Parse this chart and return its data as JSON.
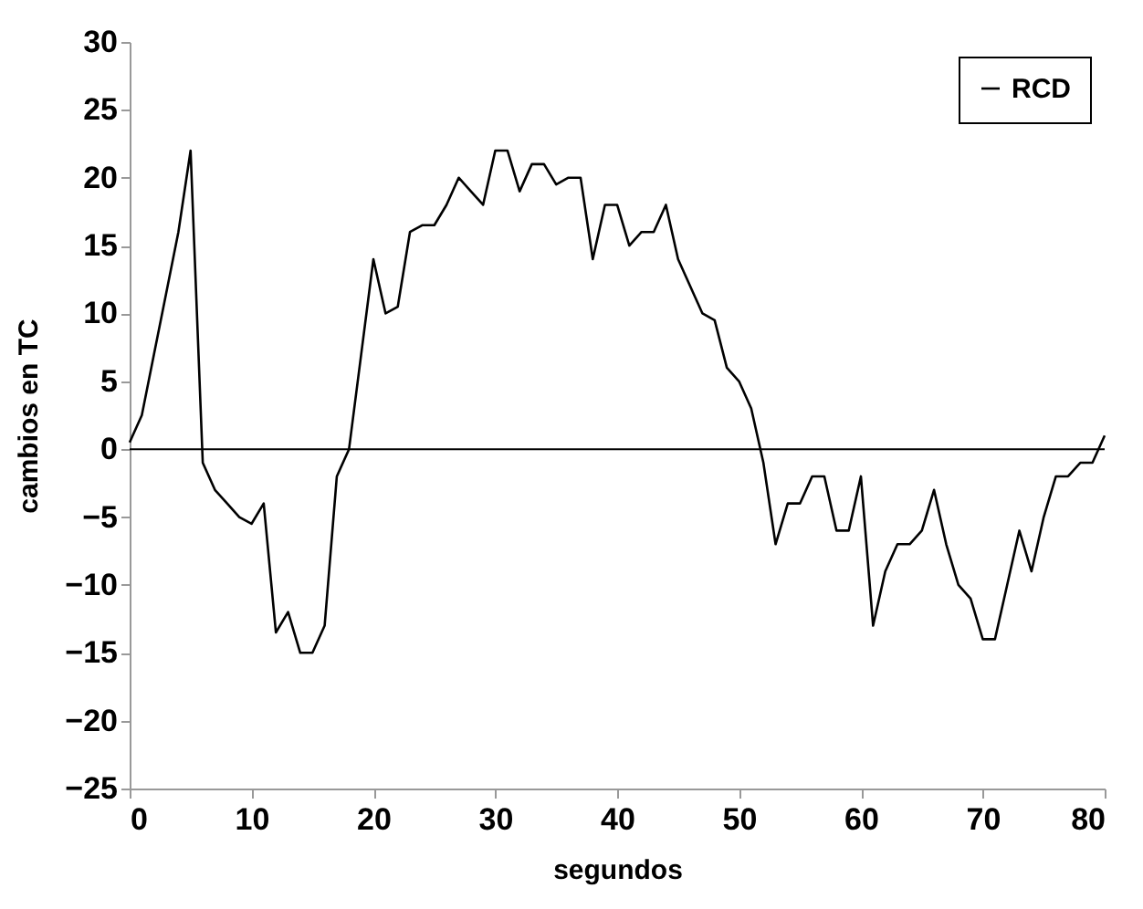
{
  "chart_data": {
    "type": "line",
    "xlabel": "segundos",
    "ylabel": "cambios en TC",
    "x": [
      0,
      1,
      2,
      3,
      4,
      5,
      6,
      7,
      8,
      9,
      10,
      11,
      12,
      13,
      14,
      15,
      16,
      17,
      18,
      19,
      20,
      21,
      22,
      23,
      24,
      25,
      26,
      27,
      28,
      29,
      30,
      31,
      32,
      33,
      34,
      35,
      36,
      37,
      38,
      39,
      40,
      41,
      42,
      43,
      44,
      45,
      46,
      47,
      48,
      49,
      50,
      51,
      52,
      53,
      54,
      55,
      56,
      57,
      58,
      59,
      60,
      61,
      62,
      63,
      64,
      65,
      66,
      67,
      68,
      69,
      70,
      71,
      72,
      73,
      74,
      75,
      76,
      77,
      78,
      79,
      80
    ],
    "series": [
      {
        "name": "RCD",
        "color": "#000000",
        "values": [
          0.5,
          2.5,
          7,
          11.5,
          16,
          22,
          -1,
          -3,
          -4,
          -5,
          -5.5,
          -4,
          -13.5,
          -12,
          -15,
          -15,
          -13,
          -2,
          0,
          7,
          14,
          10,
          10.5,
          16,
          16.5,
          16.5,
          18,
          20,
          19,
          18,
          22,
          22,
          19,
          21,
          21,
          19.5,
          20,
          20,
          14,
          18,
          18,
          15,
          16,
          16,
          18,
          14,
          12,
          10,
          9.5,
          6,
          5,
          3,
          -1,
          -7,
          -4,
          -4,
          -2,
          -2,
          -6,
          -6,
          -2,
          -13,
          -9,
          -7,
          -7,
          -6,
          -3,
          -7,
          -10,
          -11,
          -14,
          -14,
          -10,
          -6,
          -9,
          -5,
          -2,
          -2,
          -1,
          -1,
          1
        ]
      }
    ],
    "xlim": [
      0,
      80
    ],
    "xticks": [
      0,
      10,
      20,
      30,
      40,
      50,
      60,
      70,
      80
    ],
    "ylim": [
      -25,
      30
    ],
    "yticks": [
      -25,
      -20,
      -15,
      -10,
      -5,
      0,
      5,
      10,
      15,
      20,
      25,
      30
    ],
    "ref_lines": [
      {
        "axis": "y",
        "value": 0,
        "color": "#000000"
      }
    ],
    "legend": "top right",
    "grid": false,
    "marker": "none",
    "line_style": "solid"
  }
}
